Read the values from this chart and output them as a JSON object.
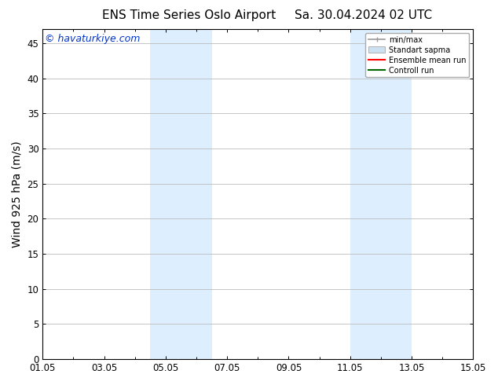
{
  "title_left": "ENS Time Series Oslo Airport",
  "title_right": "Sa. 30.04.2024 02 UTC",
  "ylabel": "Wind 925 hPa (m/s)",
  "watermark": "© havaturkiye.com",
  "watermark_color": "#0033cc",
  "ylim": [
    0,
    47
  ],
  "yticks": [
    0,
    5,
    10,
    15,
    20,
    25,
    30,
    35,
    40,
    45
  ],
  "xlim": [
    0,
    14
  ],
  "xtick_labels": [
    "01.05",
    "03.05",
    "05.05",
    "07.05",
    "09.05",
    "11.05",
    "13.05",
    "15.05"
  ],
  "xtick_positions": [
    0,
    2,
    4,
    6,
    8,
    10,
    12,
    14
  ],
  "shaded_regions": [
    {
      "x_start": 3.5,
      "x_end": 5.5,
      "color": "#ddeeff"
    },
    {
      "x_start": 10.0,
      "x_end": 12.0,
      "color": "#ddeeff"
    }
  ],
  "legend_labels": [
    "min/max",
    "Standart sapma",
    "Ensemble mean run",
    "Controll run"
  ],
  "legend_colors": [
    "#999999",
    "#cce0f0",
    "#ff0000",
    "#006600"
  ],
  "bg_color": "#ffffff",
  "plot_bg_color": "#ffffff",
  "grid_color": "#bbbbbb",
  "tick_fontsize": 8.5,
  "ylabel_fontsize": 10,
  "title_fontsize": 11,
  "watermark_fontsize": 9
}
